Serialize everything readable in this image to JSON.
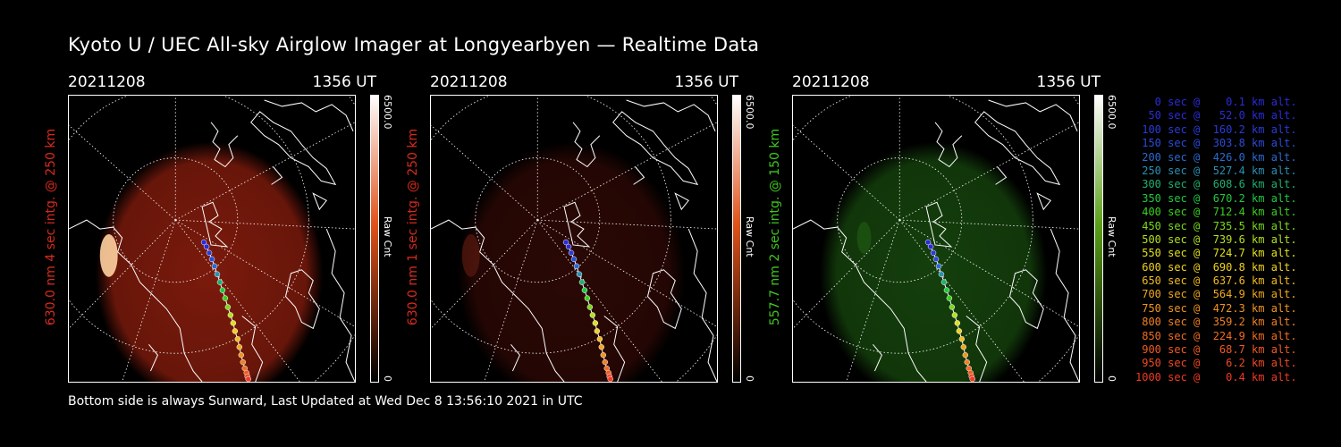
{
  "title": "Kyoto U / UEC All-sky Airglow Imager at Longyearbyen — Realtime Data",
  "footer": "Bottom side is always Sunward, Last Updated at Wed Dec  8 13:56:10 2021 in UTC",
  "panels": [
    {
      "date": "20211208",
      "time": "1356 UT",
      "ylabel": "630.0 nm 4 sec intg. @ 250 km",
      "label_color": "#d82a1c",
      "cbar_max": "6500.0",
      "cbar_min": "0",
      "cbar_unit": "Raw Cnt",
      "cbar_top": "#ffffff",
      "cbar_mid": "#e0521a",
      "cbar_bot": "#000000",
      "glow": "#7a1a0c"
    },
    {
      "date": "20211208",
      "time": "1356 UT",
      "ylabel": "630.0 nm 1 sec intg. @ 250 km",
      "label_color": "#d82a1c",
      "cbar_max": "6500.0",
      "cbar_min": "0",
      "cbar_unit": "Raw Cnt",
      "cbar_top": "#ffffff",
      "cbar_mid": "#e0521a",
      "cbar_bot": "#000000",
      "glow": "#2a0805"
    },
    {
      "date": "20211208",
      "time": "1356 UT",
      "ylabel": "557.7 nm 2 sec intg. @ 150 km",
      "label_color": "#3ec81e",
      "cbar_max": "6500.0",
      "cbar_min": "0",
      "cbar_unit": "Raw Cnt",
      "cbar_top": "#ffffff",
      "cbar_mid": "#5aa018",
      "cbar_bot": "#000000",
      "glow": "#143f0c"
    }
  ],
  "legend": [
    {
      "text": "   0 sec @    0.1 km alt.",
      "color": "#2b2bd8"
    },
    {
      "text": "  50 sec @   52.0 km alt.",
      "color": "#2b2bd8"
    },
    {
      "text": " 100 sec @  160.2 km alt.",
      "color": "#2b3bd8"
    },
    {
      "text": " 150 sec @  303.8 km alt.",
      "color": "#2b4bd8"
    },
    {
      "text": " 200 sec @  426.0 km alt.",
      "color": "#2b6ad0"
    },
    {
      "text": " 250 sec @  527.4 km alt.",
      "color": "#2b90b0"
    },
    {
      "text": " 300 sec @  608.6 km alt.",
      "color": "#20b070"
    },
    {
      "text": " 350 sec @  670.2 km alt.",
      "color": "#20c840"
    },
    {
      "text": " 400 sec @  712.4 km alt.",
      "color": "#3ad01e"
    },
    {
      "text": " 450 sec @  735.5 km alt.",
      "color": "#7ad81e"
    },
    {
      "text": " 500 sec @  739.6 km alt.",
      "color": "#b4e01e"
    },
    {
      "text": " 550 sec @  724.7 km alt.",
      "color": "#e0e01e"
    },
    {
      "text": " 600 sec @  690.8 km alt.",
      "color": "#f0d21e"
    },
    {
      "text": " 650 sec @  637.6 km alt.",
      "color": "#f0bc1e"
    },
    {
      "text": " 700 sec @  564.9 km alt.",
      "color": "#f0a81e"
    },
    {
      "text": " 750 sec @  472.3 km alt.",
      "color": "#f09420"
    },
    {
      "text": " 800 sec @  359.2 km alt.",
      "color": "#f08020"
    },
    {
      "text": " 850 sec @  224.9 km alt.",
      "color": "#f06c20"
    },
    {
      "text": " 900 sec @   68.7 km alt.",
      "color": "#f05a22"
    },
    {
      "text": " 950 sec @    6.2 km alt.",
      "color": "#f04a22"
    },
    {
      "text": "1000 sec @    0.4 km alt.",
      "color": "#f03a22"
    }
  ]
}
